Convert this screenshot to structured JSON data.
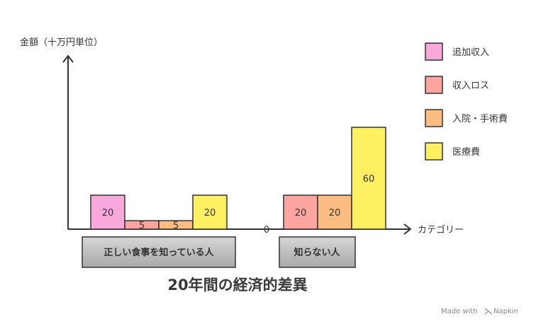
{
  "chart_data": {
    "type": "bar",
    "title": "20年間の経済的差異",
    "ylabel": "金額（十万円単位）",
    "xlabel": "カテゴリー",
    "ylim": [
      0,
      60
    ],
    "categories": [
      "正しい食事を知っている人",
      "知らない人"
    ],
    "series": [
      {
        "name": "追加収入",
        "color": "#f9a8dc",
        "values": [
          20,
          0
        ]
      },
      {
        "name": "収入ロス",
        "color": "#fca5a0",
        "values": [
          5,
          20
        ]
      },
      {
        "name": "入院・手術費",
        "color": "#fdbd82",
        "values": [
          5,
          20
        ]
      },
      {
        "name": "医療費",
        "color": "#fef061",
        "values": [
          20,
          60
        ]
      }
    ],
    "legend_position": "right",
    "grid": false
  },
  "footer": {
    "text": "Made with",
    "brand": "Napkin"
  }
}
